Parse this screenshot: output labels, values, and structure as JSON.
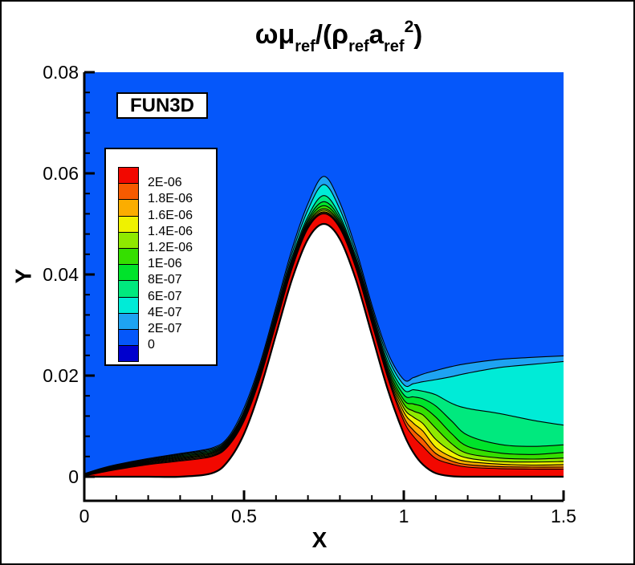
{
  "figure": {
    "background": "#FFFFFF",
    "border_color": "#000000",
    "annotation_label": "FUN3D",
    "title_plain": "ωμref/(ρref aref 2)",
    "title_parts": [
      {
        "text": "ω",
        "style": "greek"
      },
      {
        "text": "μ",
        "style": "greek"
      },
      {
        "text": "ref",
        "style": "sub"
      },
      {
        "text": "/(",
        "style": "main"
      },
      {
        "text": "ρ",
        "style": "greek"
      },
      {
        "text": "ref",
        "style": "sub"
      },
      {
        "text": "a",
        "style": "main"
      },
      {
        "text": "ref",
        "style": "sub"
      },
      {
        "text": "2",
        "style": "sup"
      },
      {
        "text": ")",
        "style": "main"
      }
    ]
  },
  "legend": {
    "labels": [
      "2E-06",
      "1.8E-06",
      "1.6E-06",
      "1.4E-06",
      "1.2E-06",
      "1E-06",
      "8E-07",
      "6E-07",
      "4E-07",
      "2E-07",
      "0"
    ],
    "cell_colors": [
      "#F20800",
      "#F75B00",
      "#FBAD00",
      "#EFF200",
      "#8FE900",
      "#35DF00",
      "#00E32B",
      "#00E97E",
      "#00EBD7",
      "#1EA3F2",
      "#0557FA",
      "#0000CD"
    ]
  },
  "axes": {
    "x": {
      "title": "X",
      "tick_labels": [
        "0",
        "0.5",
        "1",
        "1.5"
      ],
      "tick_values": [
        0,
        0.5,
        1,
        1.5
      ],
      "minor_step": 0.1,
      "range": [
        0,
        1.5
      ]
    },
    "y": {
      "title": "Y",
      "tick_labels": [
        "0",
        "0.02",
        "0.04",
        "0.06",
        "0.08"
      ],
      "tick_values": [
        0,
        0.02,
        0.04,
        0.06,
        0.08
      ],
      "minor_step": 0.004,
      "range": [
        0,
        0.08
      ]
    }
  },
  "chart_data": {
    "type": "filled-contour",
    "title": "omega*mu_ref/(rho_ref*a_ref^2)",
    "xlabel": "X",
    "ylabel": "Y",
    "xlim": [
      0,
      1.5
    ],
    "ylim": [
      0,
      0.08
    ],
    "x_ticks": [
      0,
      0.5,
      1,
      1.5
    ],
    "y_ticks": [
      0,
      0.02,
      0.04,
      0.06,
      0.08
    ],
    "levels": [
      0,
      2e-07,
      4e-07,
      6e-07,
      8e-07,
      1e-06,
      1.2e-06,
      1.4e-06,
      1.6e-06,
      1.8e-06,
      2e-06
    ],
    "far_field": {
      "band": "0 to 2E-07",
      "color": "#0557FA"
    },
    "below_zero_color": "#0000CD",
    "stations_x": [
      0,
      0.05,
      0.1,
      0.2,
      0.3,
      0.4,
      0.45,
      0.5,
      0.55,
      0.6,
      0.65,
      0.7,
      0.75,
      0.8,
      0.85,
      0.9,
      0.95,
      1.0,
      1.03,
      1.06,
      1.1,
      1.15,
      1.2,
      1.3,
      1.4,
      1.5
    ],
    "wall": {
      "description": "flat plate with sin^4 bump, 0.3<=x<=1.2, peak height 0.05 at x=0.75",
      "y": [
        0,
        0,
        0,
        0,
        0,
        0.0007,
        0.0031,
        0.0085,
        0.0172,
        0.0281,
        0.039,
        0.047,
        0.05,
        0.047,
        0.039,
        0.0281,
        0.0172,
        0.0085,
        0.0048,
        0.0024,
        0.0007,
        0.0001,
        0,
        0,
        0,
        0
      ]
    },
    "bands": [
      {
        "name": "red",
        "range": ">= 2E-06",
        "color": "#F20800",
        "upper_y": [
          0.00015,
          0.0008,
          0.0014,
          0.0024,
          0.0031,
          0.004,
          0.006,
          0.011,
          0.0194,
          0.0302,
          0.0411,
          0.0491,
          0.052,
          0.0491,
          0.0412,
          0.0303,
          0.0195,
          0.011,
          0.008,
          0.006,
          0.0036,
          0.0025,
          0.0019,
          0.0016,
          0.0015,
          0.0015
        ]
      },
      {
        "name": "orange-red",
        "range": "1.8E-06 to 2E-06",
        "color": "#F75B00",
        "upper_y": [
          0.0002,
          0.00089,
          0.00151,
          0.00253,
          0.00327,
          0.00418,
          0.00618,
          0.0112,
          0.0196,
          0.0304,
          0.0413,
          0.0493,
          0.0522,
          0.0493,
          0.0414,
          0.0305,
          0.0198,
          0.0118,
          0.0092,
          0.0074,
          0.0046,
          0.0031,
          0.0024,
          0.002,
          0.0019,
          0.0019
        ]
      },
      {
        "name": "orange",
        "range": "1.6E-06 to 1.8E-06",
        "color": "#FBAD00",
        "upper_y": [
          0.00025,
          0.00098,
          0.00162,
          0.00266,
          0.00344,
          0.00436,
          0.00636,
          0.0114,
          0.0198,
          0.0306,
          0.0415,
          0.0495,
          0.0524,
          0.0495,
          0.0416,
          0.0308,
          0.0201,
          0.0128,
          0.0106,
          0.009,
          0.0058,
          0.0039,
          0.003,
          0.0025,
          0.0023,
          0.0024
        ]
      },
      {
        "name": "yellow",
        "range": "1.4E-06 to 1.6E-06",
        "color": "#EFF200",
        "upper_y": [
          0.0003,
          0.00107,
          0.00173,
          0.00279,
          0.00361,
          0.00454,
          0.00654,
          0.0116,
          0.02,
          0.0309,
          0.0418,
          0.0498,
          0.0527,
          0.0498,
          0.0419,
          0.0311,
          0.0205,
          0.0136,
          0.0118,
          0.0105,
          0.0074,
          0.005,
          0.0037,
          0.003,
          0.0029,
          0.003
        ]
      },
      {
        "name": "chartreuse",
        "range": "1.2E-06 to 1.4E-06",
        "color": "#8FE900",
        "upper_y": [
          0.00035,
          0.00116,
          0.00184,
          0.00292,
          0.00378,
          0.00472,
          0.00672,
          0.0118,
          0.0203,
          0.0312,
          0.0421,
          0.0501,
          0.053,
          0.0501,
          0.0422,
          0.0314,
          0.0209,
          0.0144,
          0.013,
          0.0122,
          0.0096,
          0.0065,
          0.0046,
          0.0037,
          0.0035,
          0.0037
        ]
      },
      {
        "name": "green",
        "range": "1E-06 to 1.2E-06",
        "color": "#35DF00",
        "upper_y": [
          0.0004,
          0.00125,
          0.00195,
          0.00305,
          0.00395,
          0.0049,
          0.0069,
          0.0121,
          0.0206,
          0.0315,
          0.0424,
          0.0505,
          0.0536,
          0.0505,
          0.0425,
          0.0318,
          0.0214,
          0.0152,
          0.0144,
          0.0138,
          0.0118,
          0.0085,
          0.006,
          0.0047,
          0.0044,
          0.0048
        ]
      },
      {
        "name": "green-2",
        "range": "8E-07 to 1E-06",
        "color": "#00E32B",
        "upper_y": [
          0.00045,
          0.00134,
          0.00206,
          0.00318,
          0.00412,
          0.0051,
          0.0071,
          0.0124,
          0.0209,
          0.0319,
          0.0428,
          0.0509,
          0.0544,
          0.051,
          0.0429,
          0.0322,
          0.022,
          0.0162,
          0.0158,
          0.0154,
          0.014,
          0.011,
          0.0082,
          0.0064,
          0.006,
          0.0063
        ]
      },
      {
        "name": "spring-green",
        "range": "6E-07 to 8E-07",
        "color": "#00E97E",
        "upper_y": [
          0.0005,
          0.00143,
          0.00217,
          0.00331,
          0.0043,
          0.0053,
          0.0073,
          0.0127,
          0.0213,
          0.0323,
          0.0433,
          0.0515,
          0.0556,
          0.0516,
          0.0434,
          0.0327,
          0.0227,
          0.0172,
          0.0172,
          0.0169,
          0.0162,
          0.0145,
          0.0135,
          0.0125,
          0.0112,
          0.0102
        ]
      },
      {
        "name": "turquoise",
        "range": "4E-07 to 6E-07",
        "color": "#00EBD7",
        "upper_y": [
          0.00055,
          0.00152,
          0.00228,
          0.00344,
          0.00447,
          0.0055,
          0.0075,
          0.013,
          0.0218,
          0.0329,
          0.0441,
          0.0528,
          0.0578,
          0.0529,
          0.0442,
          0.0333,
          0.0236,
          0.0182,
          0.0184,
          0.0188,
          0.0192,
          0.0198,
          0.0205,
          0.0216,
          0.0222,
          0.0228
        ]
      },
      {
        "name": "sky-blue",
        "range": "2E-07 to 4E-07",
        "color": "#1EA3F2",
        "upper_y": [
          0.0006,
          0.0016,
          0.0024,
          0.0036,
          0.0046,
          0.0057,
          0.0078,
          0.0136,
          0.0224,
          0.0336,
          0.045,
          0.054,
          0.0594,
          0.0542,
          0.0451,
          0.034,
          0.0245,
          0.0192,
          0.0196,
          0.0203,
          0.021,
          0.0218,
          0.0224,
          0.0232,
          0.0236,
          0.0239
        ]
      }
    ]
  }
}
